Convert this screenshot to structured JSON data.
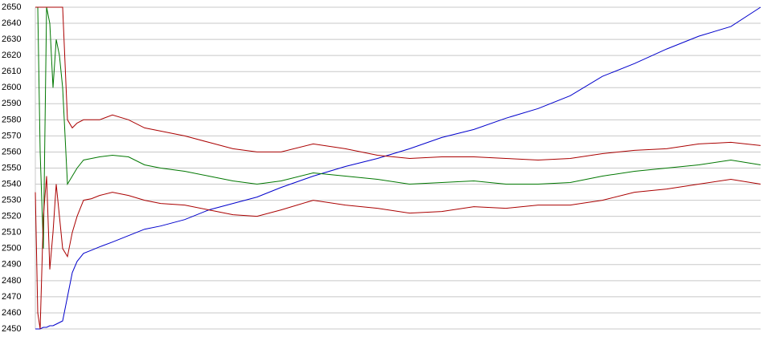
{
  "chart_data": {
    "type": "line",
    "x": [
      0,
      3,
      6,
      10,
      14,
      18,
      22,
      26,
      30,
      34,
      40,
      46,
      52,
      60,
      70,
      80,
      96,
      116,
      136,
      156,
      186,
      216,
      246,
      276,
      306,
      346,
      386,
      426,
      466,
      506,
      546,
      586,
      626,
      666,
      706,
      746,
      786,
      826,
      866,
      903
    ],
    "xlim": [
      0,
      903
    ],
    "ylim": [
      2450,
      2650
    ],
    "yticks": [
      2450,
      2460,
      2470,
      2480,
      2490,
      2500,
      2510,
      2520,
      2530,
      2540,
      2550,
      2560,
      2570,
      2580,
      2590,
      2600,
      2610,
      2620,
      2630,
      2640,
      2650
    ],
    "grid": true,
    "series": [
      {
        "color": "#0000cc",
        "values": [
          2450,
          2450,
          2450,
          2451,
          2451,
          2452,
          2452,
          2453,
          2454,
          2455,
          2470,
          2485,
          2492,
          2497,
          2499,
          2501,
          2504,
          2508,
          2512,
          2514,
          2518,
          2524,
          2528,
          2532,
          2538,
          2545,
          2551,
          2556,
          2562,
          2569,
          2574,
          2581,
          2587,
          2595,
          2607,
          2615,
          2624,
          2632,
          2638,
          2650
        ]
      },
      {
        "color": "#007700",
        "values": [
          2650,
          2650,
          2560,
          2500,
          2650,
          2640,
          2600,
          2630,
          2620,
          2600,
          2540,
          2545,
          2550,
          2555,
          2556,
          2557,
          2558,
          2557,
          2552,
          2550,
          2548,
          2545,
          2542,
          2540,
          2542,
          2547,
          2545,
          2543,
          2540,
          2541,
          2542,
          2540,
          2540,
          2541,
          2545,
          2548,
          2550,
          2552,
          2555,
          2552
        ]
      },
      {
        "color": "#aa0000",
        "values": [
          2650,
          2650,
          2650,
          2650,
          2650,
          2650,
          2650,
          2650,
          2650,
          2650,
          2580,
          2575,
          2578,
          2580,
          2580,
          2580,
          2583,
          2580,
          2575,
          2573,
          2570,
          2566,
          2562,
          2560,
          2560,
          2565,
          2562,
          2558,
          2556,
          2557,
          2557,
          2556,
          2555,
          2556,
          2559,
          2561,
          2562,
          2565,
          2566,
          2564
        ]
      },
      {
        "color": "#aa0000",
        "values": [
          2535,
          2460,
          2450,
          2520,
          2545,
          2487,
          2510,
          2540,
          2520,
          2500,
          2495,
          2510,
          2520,
          2530,
          2531,
          2533,
          2535,
          2533,
          2530,
          2528,
          2527,
          2524,
          2521,
          2520,
          2524,
          2530,
          2527,
          2525,
          2522,
          2523,
          2526,
          2525,
          2527,
          2527,
          2530,
          2535,
          2537,
          2540,
          2543,
          2540
        ]
      }
    ]
  }
}
